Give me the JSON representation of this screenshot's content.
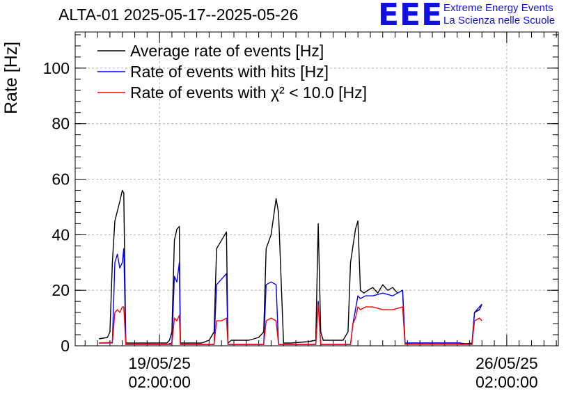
{
  "title": "ALTA-01 2025-05-17--2025-05-26",
  "logo": {
    "mark": "EEE",
    "line1": "Extreme Energy Events",
    "line2": "La Scienza nelle Scuole"
  },
  "colors": {
    "average": "#000000",
    "hits": "#0000ff",
    "chi2": "#ff0000",
    "logo": "#1010e0"
  },
  "chart_data": {
    "type": "line",
    "title": "ALTA-01 2025-05-17--2025-05-26",
    "ylabel": "Rate [Hz]",
    "xlabel": "",
    "ylim": [
      0,
      113
    ],
    "xlim_days": [
      -1.7,
      8.04
    ],
    "grid": true,
    "legend_placement": "top-left",
    "y_ticks": [
      "0",
      "20",
      "40",
      "60",
      "80",
      "100"
    ],
    "x_ticks": [
      {
        "line1": "19/05/25",
        "line2": "02:00:00",
        "day": 0
      },
      {
        "line1": "26/05/25",
        "line2": "02:00:00",
        "day": 7
      }
    ],
    "legend": [
      {
        "label": "Average rate of events [Hz]",
        "color": "#000000"
      },
      {
        "label": "Rate of events with hits [Hz]",
        "color": "#0000ff"
      },
      {
        "label": "Rate of events with χ² < 10.0 [Hz]",
        "color": "#ff0000"
      }
    ],
    "series": [
      {
        "name": "Average rate of events [Hz]",
        "color": "#000000",
        "points": [
          [
            -1.22,
            2.5
          ],
          [
            -1.05,
            3
          ],
          [
            -1.0,
            5
          ],
          [
            -0.95,
            30
          ],
          [
            -0.9,
            45
          ],
          [
            -0.8,
            52
          ],
          [
            -0.75,
            56
          ],
          [
            -0.72,
            55
          ],
          [
            -0.68,
            1
          ],
          [
            -0.6,
            1
          ],
          [
            0,
            1
          ],
          [
            0.15,
            1
          ],
          [
            0.2,
            2
          ],
          [
            0.25,
            5
          ],
          [
            0.3,
            38
          ],
          [
            0.35,
            42
          ],
          [
            0.4,
            43
          ],
          [
            0.42,
            1
          ],
          [
            0.5,
            1
          ],
          [
            0.85,
            1
          ],
          [
            1.0,
            2
          ],
          [
            1.1,
            5
          ],
          [
            1.15,
            35
          ],
          [
            1.25,
            38
          ],
          [
            1.35,
            41
          ],
          [
            1.38,
            1
          ],
          [
            1.45,
            2
          ],
          [
            1.8,
            2
          ],
          [
            2.0,
            3
          ],
          [
            2.1,
            5
          ],
          [
            2.15,
            35
          ],
          [
            2.25,
            40
          ],
          [
            2.35,
            53
          ],
          [
            2.4,
            48
          ],
          [
            2.5,
            1
          ],
          [
            2.65,
            1
          ],
          [
            3.0,
            1.5
          ],
          [
            3.15,
            2
          ],
          [
            3.2,
            44
          ],
          [
            3.25,
            5
          ],
          [
            3.3,
            2
          ],
          [
            3.7,
            2
          ],
          [
            3.8,
            5
          ],
          [
            3.85,
            30
          ],
          [
            3.95,
            42
          ],
          [
            4.0,
            45
          ],
          [
            4.05,
            20
          ],
          [
            4.12,
            19
          ],
          [
            4.2,
            20
          ],
          [
            4.3,
            21
          ],
          [
            4.4,
            19
          ],
          [
            4.5,
            22
          ],
          [
            4.6,
            20
          ],
          [
            4.7,
            21
          ],
          [
            4.8,
            19
          ],
          [
            4.9,
            20
          ],
          [
            4.95,
            1
          ],
          [
            5.0,
            1
          ],
          [
            6.05,
            1
          ],
          [
            6.1,
            0.5
          ],
          [
            6.3,
            1
          ],
          [
            6.35,
            12
          ],
          [
            6.45,
            13
          ],
          [
            6.5,
            15
          ]
        ]
      },
      {
        "name": "Rate of events with hits [Hz]",
        "color": "#0000ff",
        "points": [
          [
            -1.22,
            1
          ],
          [
            -0.95,
            1.2
          ],
          [
            -0.9,
            30
          ],
          [
            -0.85,
            33
          ],
          [
            -0.8,
            28
          ],
          [
            -0.75,
            30
          ],
          [
            -0.72,
            35
          ],
          [
            -0.68,
            0.5
          ],
          [
            0,
            0.5
          ],
          [
            0.15,
            0.5
          ],
          [
            0.25,
            1
          ],
          [
            0.3,
            25
          ],
          [
            0.35,
            23
          ],
          [
            0.4,
            30
          ],
          [
            0.42,
            0.5
          ],
          [
            1.1,
            0.5
          ],
          [
            1.15,
            22
          ],
          [
            1.25,
            24
          ],
          [
            1.35,
            26
          ],
          [
            1.38,
            0.5
          ],
          [
            2.1,
            0.5
          ],
          [
            2.15,
            22
          ],
          [
            2.25,
            23
          ],
          [
            2.35,
            22
          ],
          [
            2.4,
            0.5
          ],
          [
            3.15,
            0.5
          ],
          [
            3.2,
            16
          ],
          [
            3.25,
            0.5
          ],
          [
            3.85,
            0.5
          ],
          [
            3.9,
            8
          ],
          [
            3.95,
            13
          ],
          [
            4.0,
            18
          ],
          [
            4.05,
            17
          ],
          [
            4.15,
            18
          ],
          [
            4.3,
            18
          ],
          [
            4.5,
            19
          ],
          [
            4.7,
            18
          ],
          [
            4.9,
            20
          ],
          [
            4.95,
            1
          ],
          [
            6.05,
            1
          ],
          [
            6.3,
            0.5
          ],
          [
            6.35,
            12
          ],
          [
            6.45,
            14
          ],
          [
            6.5,
            15
          ]
        ]
      },
      {
        "name": "Rate of events with χ² < 10.0 [Hz]",
        "color": "#ff0000",
        "points": [
          [
            -1.22,
            1
          ],
          [
            -0.95,
            1
          ],
          [
            -0.9,
            12
          ],
          [
            -0.85,
            13
          ],
          [
            -0.8,
            12
          ],
          [
            -0.75,
            14
          ],
          [
            -0.72,
            14
          ],
          [
            -0.68,
            0.5
          ],
          [
            0,
            0.5
          ],
          [
            0.25,
            0.5
          ],
          [
            0.3,
            10
          ],
          [
            0.35,
            9
          ],
          [
            0.4,
            11
          ],
          [
            0.42,
            0.5
          ],
          [
            1.1,
            0.5
          ],
          [
            1.15,
            9
          ],
          [
            1.25,
            9
          ],
          [
            1.35,
            10
          ],
          [
            1.38,
            0.5
          ],
          [
            2.1,
            0.5
          ],
          [
            2.15,
            9
          ],
          [
            2.25,
            10
          ],
          [
            2.35,
            9
          ],
          [
            2.4,
            0.5
          ],
          [
            3.15,
            0.5
          ],
          [
            3.2,
            15
          ],
          [
            3.25,
            0.5
          ],
          [
            3.85,
            0.5
          ],
          [
            3.9,
            8
          ],
          [
            3.95,
            10
          ],
          [
            4.0,
            14
          ],
          [
            4.05,
            13
          ],
          [
            4.15,
            14
          ],
          [
            4.3,
            14
          ],
          [
            4.5,
            13
          ],
          [
            4.7,
            13
          ],
          [
            4.9,
            14
          ],
          [
            4.95,
            0.5
          ],
          [
            6.05,
            0.5
          ],
          [
            6.3,
            0.5
          ],
          [
            6.35,
            9
          ],
          [
            6.45,
            10
          ],
          [
            6.5,
            9
          ]
        ]
      }
    ]
  }
}
